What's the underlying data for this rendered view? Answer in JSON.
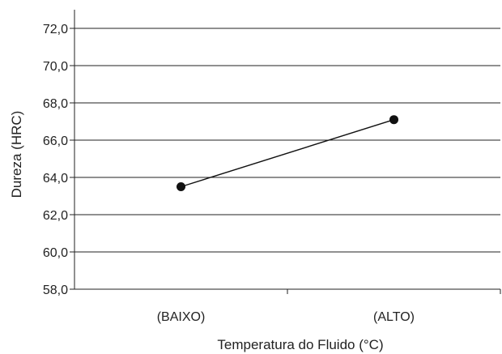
{
  "chart_data": {
    "type": "line",
    "title": "",
    "xlabel": "Temperatura do Fluido (°C)",
    "ylabel": "Dureza (HRC)",
    "categories": [
      "(BAIXO)",
      "(ALTO)"
    ],
    "series": [
      {
        "values": [
          63.5,
          67.1
        ]
      }
    ],
    "ylim": [
      58,
      73
    ],
    "yticks": [
      58,
      60,
      62,
      64,
      66,
      68,
      70,
      72
    ],
    "ytick_labels": [
      "58,0",
      "60,0",
      "62,0",
      "64,0",
      "66,0",
      "68,0",
      "70,0",
      "72,0"
    ],
    "grid": true,
    "legend": "none",
    "colors": {
      "line": "#111111",
      "marker": "#111111",
      "grid": "#222222",
      "axis": "#222222"
    }
  }
}
